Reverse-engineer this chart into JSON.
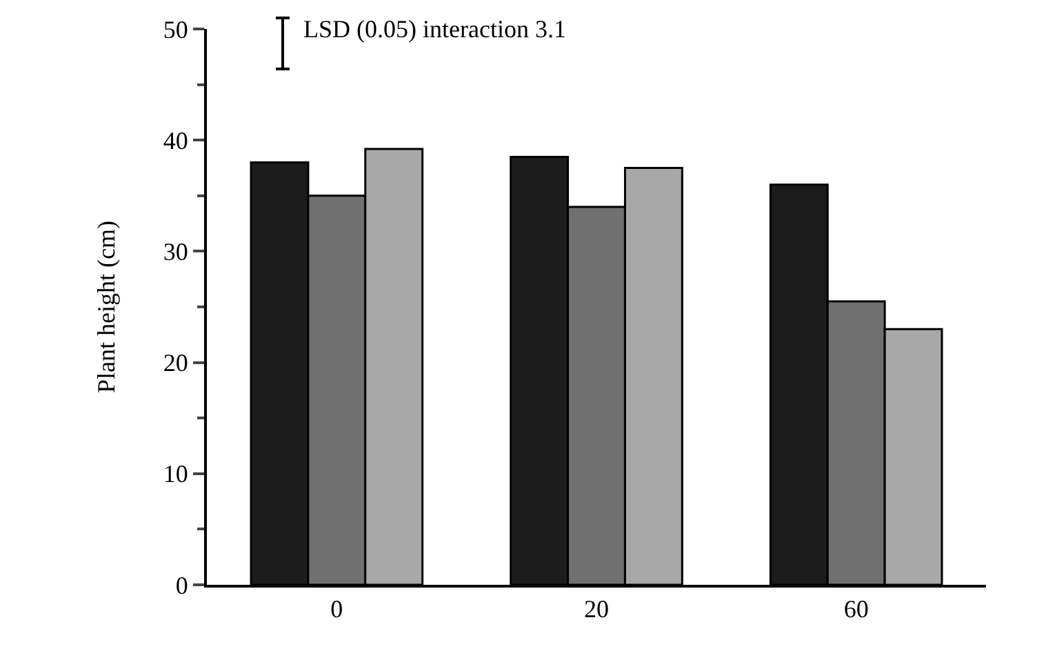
{
  "chart_data": {
    "type": "bar",
    "ylabel": "Plant height (cm)",
    "categories": [
      "0",
      "20",
      "60"
    ],
    "series": [
      {
        "color": "#1c1c1c",
        "values": [
          38,
          38.5,
          36
        ]
      },
      {
        "color": "#707070",
        "values": [
          35,
          34,
          25.5
        ]
      },
      {
        "color": "#a8a8a8",
        "values": [
          39.2,
          37.5,
          23
        ]
      }
    ],
    "ylim": [
      0,
      50
    ],
    "yticks": [
      0,
      10,
      20,
      30,
      40,
      50
    ],
    "grid": false,
    "legend": false,
    "annotations": [
      "LSD (0.05) interaction 3.1"
    ]
  }
}
